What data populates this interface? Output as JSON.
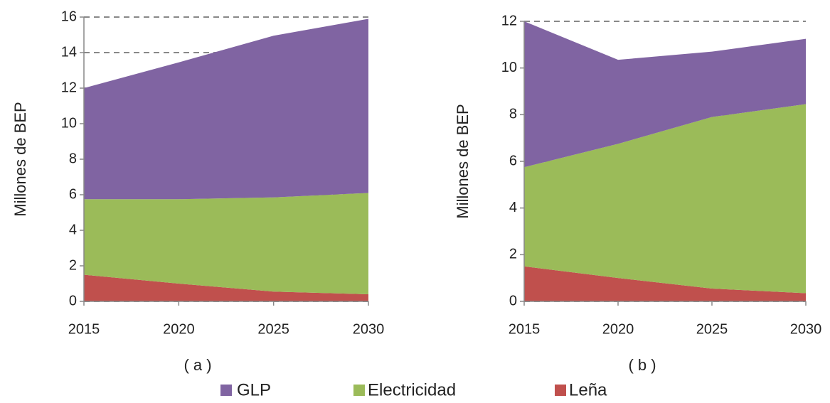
{
  "chart_data": [
    {
      "type": "stacked-area",
      "caption": "( a )",
      "y_label": "Millones de BEP",
      "x": [
        2015,
        2020,
        2025,
        2030
      ],
      "xlim": [
        2015,
        2030
      ],
      "xticks": [
        2015,
        2020,
        2025,
        2030
      ],
      "ylim": [
        0,
        16
      ],
      "yticks": [
        0,
        2,
        4,
        6,
        8,
        10,
        12,
        14,
        16
      ],
      "grid": true,
      "series": [
        {
          "name": "Leña",
          "color": "#c0504d",
          "values": [
            1.5,
            1.0,
            0.55,
            0.4
          ]
        },
        {
          "name": "Electricidad",
          "color": "#9bbb59",
          "values": [
            4.25,
            4.75,
            5.3,
            5.7
          ]
        },
        {
          "name": "GLP",
          "color": "#8064a2",
          "values": [
            6.25,
            7.7,
            9.1,
            9.8
          ]
        }
      ]
    },
    {
      "type": "stacked-area",
      "caption": "( b )",
      "y_label": "Millones de BEP",
      "x": [
        2015,
        2020,
        2025,
        2030
      ],
      "xlim": [
        2015,
        2030
      ],
      "xticks": [
        2015,
        2020,
        2025,
        2030
      ],
      "ylim": [
        0,
        12
      ],
      "yticks": [
        0,
        2,
        4,
        6,
        8,
        10,
        12
      ],
      "grid": true,
      "series": [
        {
          "name": "Leña",
          "color": "#c0504d",
          "values": [
            1.5,
            1.0,
            0.55,
            0.35
          ]
        },
        {
          "name": "Electricidad",
          "color": "#9bbb59",
          "values": [
            4.25,
            5.75,
            7.35,
            8.1
          ]
        },
        {
          "name": "GLP",
          "color": "#8064a2",
          "values": [
            6.25,
            3.6,
            2.8,
            2.8
          ]
        }
      ]
    }
  ]
}
